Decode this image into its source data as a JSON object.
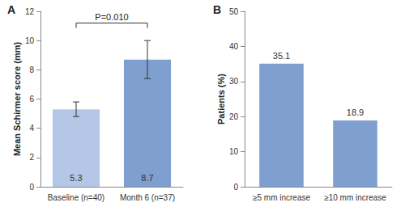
{
  "chart_data": [
    {
      "type": "bar",
      "title": "A",
      "y_label": "Mean Schirmer score (mm)",
      "categories": [
        "Baseline (n=40)",
        "Month 6 (n=37)"
      ],
      "values": [
        5.3,
        8.7
      ],
      "error_lower": [
        4.8,
        7.4
      ],
      "error_upper": [
        5.8,
        10.0
      ],
      "colors": [
        "#b4c7e7",
        "#7f9fd0"
      ],
      "ylim": [
        0,
        12
      ],
      "yticks": [
        0,
        2,
        4,
        6,
        8,
        10,
        12
      ],
      "grid": false,
      "data_labels": true,
      "annotations": [
        "P=0.010"
      ]
    },
    {
      "type": "bar",
      "title": "B",
      "y_label": "Patients (%)",
      "categories": [
        "≥5 mm increase",
        "≥10 mm increase"
      ],
      "values": [
        35.1,
        18.9
      ],
      "color": "#7f9fd0",
      "ylim": [
        0,
        50
      ],
      "yticks": [
        0,
        10,
        20,
        30,
        40,
        50
      ],
      "grid": false,
      "data_labels": true
    }
  ]
}
